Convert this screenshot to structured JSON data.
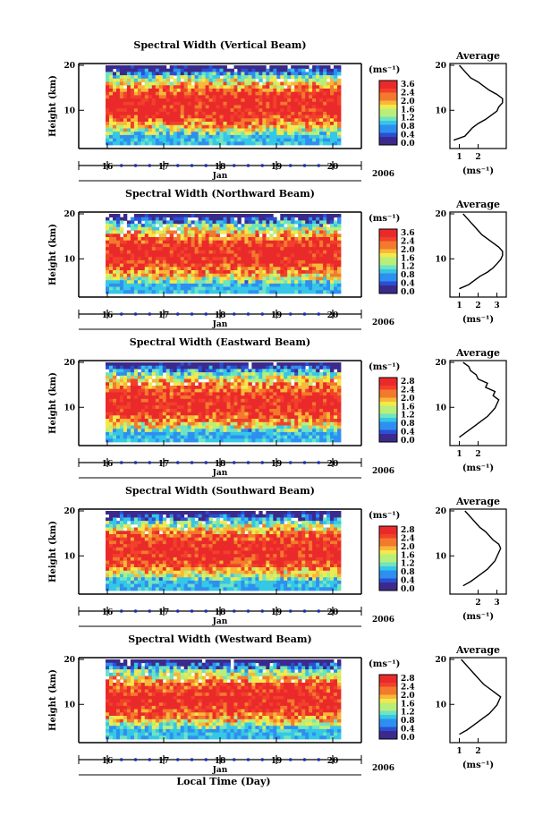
{
  "chart_data": [
    {
      "type": "heatmap",
      "title": "Spectral Width (Vertical Beam)",
      "ylabel": "Height (km)",
      "yticks": [
        "20",
        "10"
      ],
      "xticks": [
        "16",
        "17",
        "18",
        "19",
        "20"
      ],
      "month": "Jan",
      "year": "2006",
      "colorbar": {
        "unit": "(ms⁻¹)",
        "ticks": [
          "3.6",
          "2.4",
          "2.0",
          "1.6",
          "1.2",
          "0.8",
          "0.4",
          "0.0"
        ]
      },
      "profile": {
        "title": "Average",
        "xticks": [
          "1",
          "2"
        ],
        "xlabel": "(ms⁻¹)",
        "heights": [
          2,
          3,
          4,
          5,
          6,
          7,
          8,
          9,
          10,
          11,
          12,
          13,
          14,
          15,
          16,
          17,
          18,
          19,
          20
        ],
        "values": [
          0.7,
          1.3,
          1.5,
          1.7,
          2.0,
          2.4,
          2.7,
          3.0,
          3.1,
          3.3,
          3.3,
          3.0,
          2.6,
          2.3,
          2.0,
          1.6,
          1.4,
          1.2,
          1.0
        ]
      }
    },
    {
      "type": "heatmap",
      "title": "Spectral Width (Northward Beam)",
      "ylabel": "Height (km)",
      "yticks": [
        "20",
        "10"
      ],
      "xticks": [
        "16",
        "17",
        "18",
        "19",
        "20"
      ],
      "month": "Jan",
      "year": "2006",
      "colorbar": {
        "unit": "(ms⁻¹)",
        "ticks": [
          "3.6",
          "2.4",
          "2.0",
          "1.6",
          "1.2",
          "0.8",
          "0.4",
          "0.0"
        ]
      },
      "profile": {
        "title": "Average",
        "xticks": [
          "1",
          "2",
          "3"
        ],
        "xlabel": "(ms⁻¹)",
        "heights": [
          2,
          3,
          4,
          5,
          6,
          7,
          8,
          9,
          10,
          11,
          12,
          13,
          14,
          15,
          16,
          17,
          18,
          19,
          20
        ],
        "values": [
          1.0,
          1.5,
          1.8,
          2.1,
          2.5,
          2.8,
          3.0,
          3.2,
          3.3,
          3.3,
          3.1,
          2.8,
          2.5,
          2.2,
          2.0,
          1.8,
          1.6,
          1.4,
          1.2
        ]
      }
    },
    {
      "type": "heatmap",
      "title": "Spectral Width (Eastward Beam)",
      "ylabel": "Height (km)",
      "yticks": [
        "20",
        "10"
      ],
      "xticks": [
        "16",
        "17",
        "18",
        "19",
        "20"
      ],
      "month": "Jan",
      "year": "2006",
      "colorbar": {
        "unit": "(ms⁻¹)",
        "ticks": [
          "2.8",
          "2.4",
          "2.0",
          "1.6",
          "1.2",
          "0.8",
          "0.4",
          "0.0"
        ]
      },
      "profile": {
        "title": "Average",
        "xticks": [
          "1",
          "2"
        ],
        "xlabel": "(ms⁻¹)",
        "heights": [
          2,
          3,
          4,
          5,
          6,
          7,
          8,
          9,
          10,
          11,
          12,
          13,
          14,
          15,
          16,
          17,
          18,
          19,
          20
        ],
        "values": [
          1.0,
          1.3,
          1.6,
          1.9,
          2.2,
          2.5,
          2.7,
          2.9,
          3.0,
          3.1,
          2.8,
          2.9,
          2.4,
          2.5,
          2.0,
          1.9,
          1.6,
          1.5,
          1.2
        ]
      }
    },
    {
      "type": "heatmap",
      "title": "Spectral Width (Southward Beam)",
      "ylabel": "Height (km)",
      "yticks": [
        "20",
        "10"
      ],
      "xticks": [
        "16",
        "17",
        "18",
        "19",
        "20"
      ],
      "month": "Jan",
      "year": "2006",
      "colorbar": {
        "unit": "(ms⁻¹)",
        "ticks": [
          "2.8",
          "2.4",
          "2.0",
          "1.6",
          "1.2",
          "0.8",
          "0.4",
          "0.0"
        ]
      },
      "profile": {
        "title": "Average",
        "xticks": [
          "2",
          "3"
        ],
        "xlabel": "(ms⁻¹)",
        "heights": [
          2,
          3,
          4,
          5,
          6,
          7,
          8,
          9,
          10,
          11,
          12,
          13,
          14,
          15,
          16,
          17,
          18,
          19,
          20
        ],
        "values": [
          1.2,
          1.6,
          1.9,
          2.2,
          2.5,
          2.7,
          2.9,
          3.0,
          3.1,
          3.2,
          3.1,
          2.8,
          2.6,
          2.4,
          2.1,
          1.9,
          1.7,
          1.5,
          1.3
        ]
      }
    },
    {
      "type": "heatmap",
      "title": "Spectral Width (Westward Beam)",
      "ylabel": "Height (km)",
      "yticks": [
        "20",
        "10"
      ],
      "xticks": [
        "16",
        "17",
        "18",
        "19",
        "20"
      ],
      "month": "Jan",
      "year": "2006",
      "colorbar": {
        "unit": "(ms⁻¹)",
        "ticks": [
          "2.8",
          "2.4",
          "2.0",
          "1.6",
          "1.2",
          "0.8",
          "0.4",
          "0.0"
        ]
      },
      "profile": {
        "title": "Average",
        "xticks": [
          "1",
          "2"
        ],
        "xlabel": "(ms⁻¹)",
        "heights": [
          2,
          3,
          4,
          5,
          6,
          7,
          8,
          9,
          10,
          11,
          12,
          13,
          14,
          15,
          16,
          17,
          18,
          19,
          20
        ],
        "values": [
          1.0,
          1.4,
          1.7,
          2.0,
          2.3,
          2.6,
          2.8,
          3.0,
          3.1,
          3.2,
          2.9,
          2.6,
          2.3,
          2.1,
          1.9,
          1.7,
          1.5,
          1.3,
          1.1
        ]
      }
    }
  ],
  "footer": {
    "xlabel": "Local Time (Day)"
  },
  "colors": {
    "colormap": [
      "#3b2a8c",
      "#2a4fd6",
      "#2f8ff0",
      "#35c7e6",
      "#6fe3c2",
      "#b8ef7a",
      "#f3e94b",
      "#f8b73a",
      "#f37a2c",
      "#f2402b",
      "#ea2a2a"
    ],
    "marker": "#1a2fb0"
  }
}
